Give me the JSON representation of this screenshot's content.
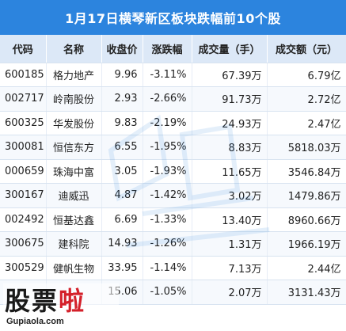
{
  "title": "1月17日横琴新区板块跌幅前10个股",
  "colors": {
    "header_bg": "#2c84de",
    "column_bg": "#dce8f7",
    "down": "#2e9e3a"
  },
  "chart_data": {
    "type": "table",
    "columns": [
      "代码",
      "名称",
      "收盘价",
      "涨跌幅",
      "成交量（手）",
      "成交额（元）"
    ],
    "rows": [
      {
        "code": "600185",
        "name": "格力地产",
        "close": "9.96",
        "change": "-3.11%",
        "volume": "67.39万",
        "amount": "6.79亿"
      },
      {
        "code": "002717",
        "name": "岭南股份",
        "close": "2.93",
        "change": "-2.66%",
        "volume": "91.73万",
        "amount": "2.72亿"
      },
      {
        "code": "600325",
        "name": "华发股份",
        "close": "9.83",
        "change": "-2.19%",
        "volume": "24.93万",
        "amount": "2.47亿"
      },
      {
        "code": "300081",
        "name": "恒信东方",
        "close": "6.55",
        "change": "-1.95%",
        "volume": "8.83万",
        "amount": "5818.03万"
      },
      {
        "code": "000659",
        "name": "珠海中富",
        "close": "3.05",
        "change": "-1.93%",
        "volume": "11.65万",
        "amount": "3546.84万"
      },
      {
        "code": "300167",
        "name": "迪威迅",
        "close": "4.87",
        "change": "-1.42%",
        "volume": "3.02万",
        "amount": "1479.86万"
      },
      {
        "code": "002492",
        "name": "恒基达鑫",
        "close": "6.69",
        "change": "-1.33%",
        "volume": "13.40万",
        "amount": "8960.66万"
      },
      {
        "code": "300675",
        "name": "建科院",
        "close": "14.93",
        "change": "-1.26%",
        "volume": "1.31万",
        "amount": "1966.19万"
      },
      {
        "code": "300529",
        "name": "健帆生物",
        "close": "33.95",
        "change": "-1.14%",
        "volume": "7.13万",
        "amount": "2.44亿"
      },
      {
        "code": "",
        "name": "",
        "close": "15.06",
        "change": "-1.05%",
        "volume": "2.07万",
        "amount": "3131.43万"
      }
    ]
  },
  "logo": {
    "text_part1": "股票",
    "text_part2": "啦",
    "url_text": "Gupiaola.com"
  }
}
